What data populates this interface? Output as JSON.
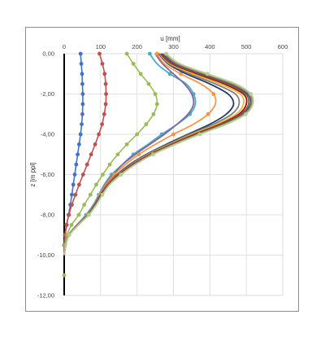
{
  "chart_data": {
    "type": "line",
    "xlabel": "u [mm]",
    "ylabel": "z [m ppl]",
    "xlim": [
      0,
      600
    ],
    "ylim": [
      -12,
      0
    ],
    "x_ticks": [
      "0",
      "100",
      "200",
      "300",
      "400",
      "500",
      "600"
    ],
    "y_ticks": [
      "0,00",
      "-2,00",
      "-4,00",
      "-6,00",
      "-8,00",
      "-10,00",
      "-12,00"
    ],
    "grid": true,
    "legend": "none",
    "depths": [
      0,
      -0.5,
      -1,
      -1.5,
      -2,
      -2.5,
      -3,
      -3.5,
      -4,
      -4.5,
      -5,
      -5.5,
      -6,
      -6.5,
      -7,
      -7.5,
      -8,
      -8.5,
      -9,
      -9.5,
      -10
    ],
    "series": [
      {
        "color": "#4472c4",
        "values": [
          45,
          47,
          49,
          50,
          51,
          51,
          50,
          48,
          45,
          41,
          37,
          33,
          29,
          25,
          21,
          17,
          12,
          7,
          3,
          1,
          0
        ]
      },
      {
        "color": "#c0504d",
        "values": [
          97,
          105,
          111,
          114,
          115,
          114,
          110,
          104,
          95,
          85,
          74,
          63,
          52,
          41,
          31,
          21,
          13,
          6,
          2,
          0,
          0
        ]
      },
      {
        "color": "#9bbb59",
        "values": [
          172,
          190,
          210,
          232,
          250,
          255,
          245,
          225,
          200,
          172,
          147,
          125,
          106,
          88,
          72,
          55,
          40,
          20,
          8,
          2,
          0
        ]
      },
      {
        "color": "#4bacc6",
        "values": [
          235,
          255,
          290,
          335,
          355,
          360,
          345,
          310,
          268,
          230,
          190,
          160,
          130,
          110,
          95,
          80,
          60,
          35,
          12,
          4,
          0
        ]
      },
      {
        "color": "#8064a2",
        "values": [
          250,
          270,
          300,
          330,
          350,
          355,
          340,
          310,
          275,
          235,
          195,
          160,
          135,
          112,
          97,
          82,
          62,
          35,
          12,
          4,
          0
        ]
      },
      {
        "color": "#f79646",
        "values": [
          255,
          275,
          320,
          375,
          410,
          415,
          395,
          355,
          300,
          250,
          205,
          168,
          138,
          114,
          98,
          83,
          63,
          36,
          12,
          4,
          0
        ]
      },
      {
        "color": "#1f3864",
        "values": [
          260,
          285,
          335,
          400,
          450,
          465,
          445,
          400,
          340,
          280,
          225,
          180,
          145,
          118,
          100,
          84,
          64,
          37,
          13,
          4,
          0
        ]
      },
      {
        "color": "#7f7f7f",
        "values": [
          262,
          288,
          345,
          415,
          470,
          480,
          460,
          410,
          345,
          285,
          228,
          183,
          147,
          119,
          101,
          85,
          65,
          37,
          13,
          4,
          0
        ]
      },
      {
        "color": "#e2bc3a",
        "values": [
          263,
          292,
          355,
          428,
          483,
          492,
          472,
          420,
          352,
          290,
          232,
          186,
          149,
          120,
          102,
          86,
          65,
          38,
          13,
          4,
          0
        ]
      },
      {
        "color": "#c00000",
        "values": [
          265,
          296,
          365,
          440,
          492,
          500,
          480,
          428,
          358,
          294,
          235,
          188,
          150,
          121,
          102,
          86,
          66,
          38,
          13,
          4,
          0
        ]
      },
      {
        "color": "#538135",
        "values": [
          268,
          300,
          372,
          448,
          498,
          506,
          486,
          433,
          362,
          297,
          237,
          190,
          152,
          122,
          103,
          87,
          66,
          38,
          13,
          4,
          0
        ]
      },
      {
        "color": "#7030a0",
        "values": [
          270,
          304,
          378,
          455,
          503,
          511,
          490,
          437,
          365,
          299,
          239,
          191,
          153,
          123,
          103,
          87,
          67,
          38,
          14,
          4,
          0
        ]
      },
      {
        "color": "#948a54",
        "values": [
          275,
          310,
          385,
          462,
          508,
          514,
          494,
          440,
          368,
          301,
          241,
          193,
          154,
          124,
          104,
          88,
          67,
          39,
          14,
          4,
          0
        ]
      },
      {
        "color": "#b3cf8e",
        "values": [
          280,
          318,
          393,
          470,
          512,
          518,
          498,
          445,
          372,
          305,
          244,
          195,
          156,
          125,
          105,
          88,
          68,
          39,
          14,
          4,
          0
        ]
      }
    ]
  }
}
